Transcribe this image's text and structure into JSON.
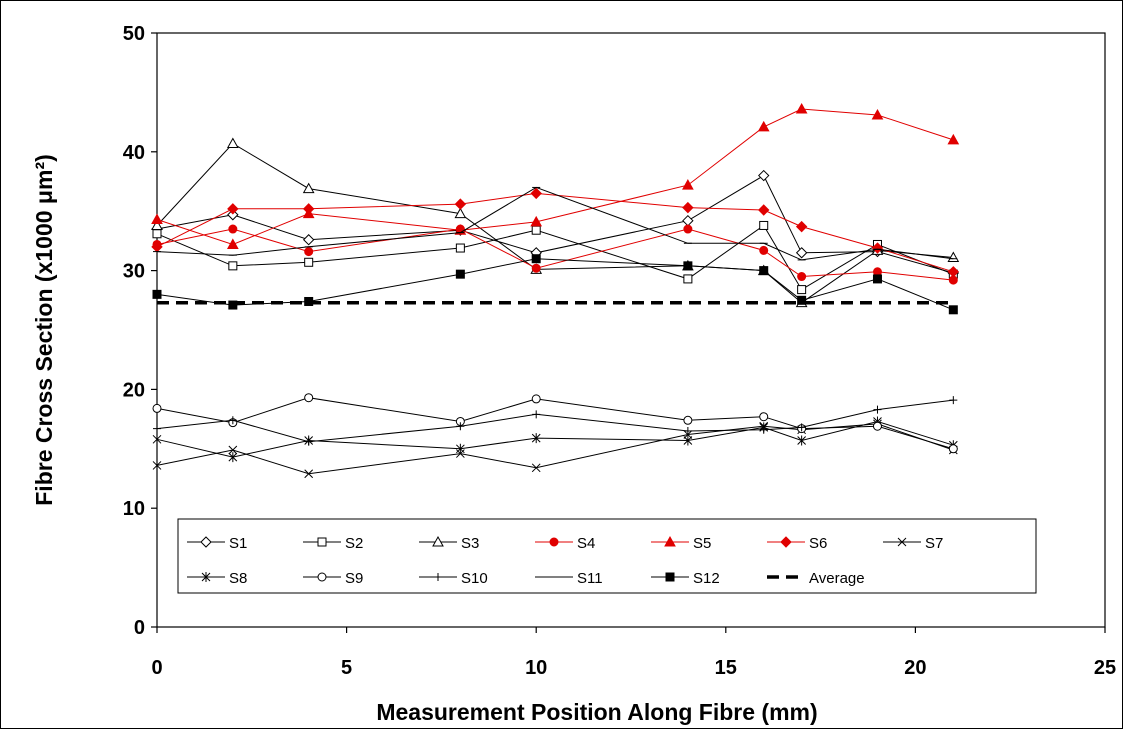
{
  "chart_data": {
    "type": "line",
    "title": "",
    "xlabel": "Measurement Position Along Fibre (mm)",
    "ylabel": "Fibre Cross Section (x1000 μm²)",
    "xlim": [
      0,
      25
    ],
    "ylim": [
      0,
      50
    ],
    "xticks": [
      "0",
      "5",
      "10",
      "15",
      "20",
      "25"
    ],
    "yticks": [
      "0",
      "10",
      "20",
      "30",
      "40",
      "50"
    ],
    "grid": false,
    "legend_position": "bottom-inside",
    "x": [
      0,
      2,
      4,
      8,
      10,
      14,
      16,
      17,
      19,
      21
    ],
    "series": [
      {
        "name": "S1",
        "color": "#000000",
        "marker": "diamond-open",
        "values": [
          33.5,
          34.7,
          32.6,
          33.4,
          31.5,
          34.2,
          38.0,
          31.5,
          31.6,
          29.8
        ]
      },
      {
        "name": "S2",
        "color": "#000000",
        "marker": "square-open",
        "values": [
          33.1,
          30.4,
          30.7,
          31.9,
          33.4,
          29.3,
          33.8,
          28.4,
          32.2,
          29.7
        ]
      },
      {
        "name": "S3",
        "color": "#000000",
        "marker": "triangle-open",
        "values": [
          33.8,
          40.7,
          36.9,
          34.8,
          30.1,
          30.4,
          30.0,
          27.3,
          31.7,
          31.1
        ]
      },
      {
        "name": "S4",
        "color": "#e00000",
        "marker": "circle-filled",
        "values": [
          32.2,
          33.5,
          31.6,
          33.5,
          30.2,
          33.5,
          31.7,
          29.5,
          29.9,
          29.2
        ]
      },
      {
        "name": "S5",
        "color": "#e00000",
        "marker": "triangle-filled",
        "values": [
          34.3,
          32.2,
          34.8,
          33.4,
          34.1,
          37.2,
          42.1,
          43.6,
          43.1,
          41.0
        ]
      },
      {
        "name": "S6",
        "color": "#e00000",
        "marker": "diamond-filled",
        "values": [
          32.0,
          35.2,
          35.2,
          35.6,
          36.5,
          35.3,
          35.1,
          33.7,
          31.9,
          29.9
        ]
      },
      {
        "name": "S7",
        "color": "#000000",
        "marker": "x",
        "values": [
          13.6,
          14.9,
          12.9,
          14.6,
          13.4,
          16.2,
          16.9,
          16.6,
          17.1,
          14.9
        ]
      },
      {
        "name": "S8",
        "color": "#000000",
        "marker": "star",
        "values": [
          15.8,
          14.3,
          15.7,
          15.0,
          15.9,
          15.7,
          16.8,
          15.7,
          17.3,
          15.3
        ]
      },
      {
        "name": "S9",
        "color": "#000000",
        "marker": "circle-open",
        "values": [
          18.4,
          17.2,
          19.3,
          17.3,
          19.2,
          17.4,
          17.7,
          16.7,
          16.9,
          15.0
        ]
      },
      {
        "name": "S10",
        "color": "#000000",
        "marker": "plus",
        "values": [
          16.7,
          17.4,
          15.6,
          16.9,
          17.9,
          16.5,
          16.6,
          16.8,
          18.3,
          19.1
        ]
      },
      {
        "name": "S11",
        "color": "#000000",
        "marker": "dash",
        "values": [
          31.6,
          31.3,
          32.0,
          33.2,
          37.0,
          32.3,
          32.3,
          30.9,
          31.8,
          31.0
        ]
      },
      {
        "name": "S12",
        "color": "#000000",
        "marker": "square-filled",
        "values": [
          28.0,
          27.1,
          27.4,
          29.7,
          31.0,
          30.4,
          30.0,
          27.5,
          29.3,
          26.7
        ]
      },
      {
        "name": "Average",
        "color": "#000000",
        "marker": "none",
        "dashed": true,
        "x": [
          0,
          21
        ],
        "values": [
          27.3,
          27.3
        ]
      }
    ]
  }
}
